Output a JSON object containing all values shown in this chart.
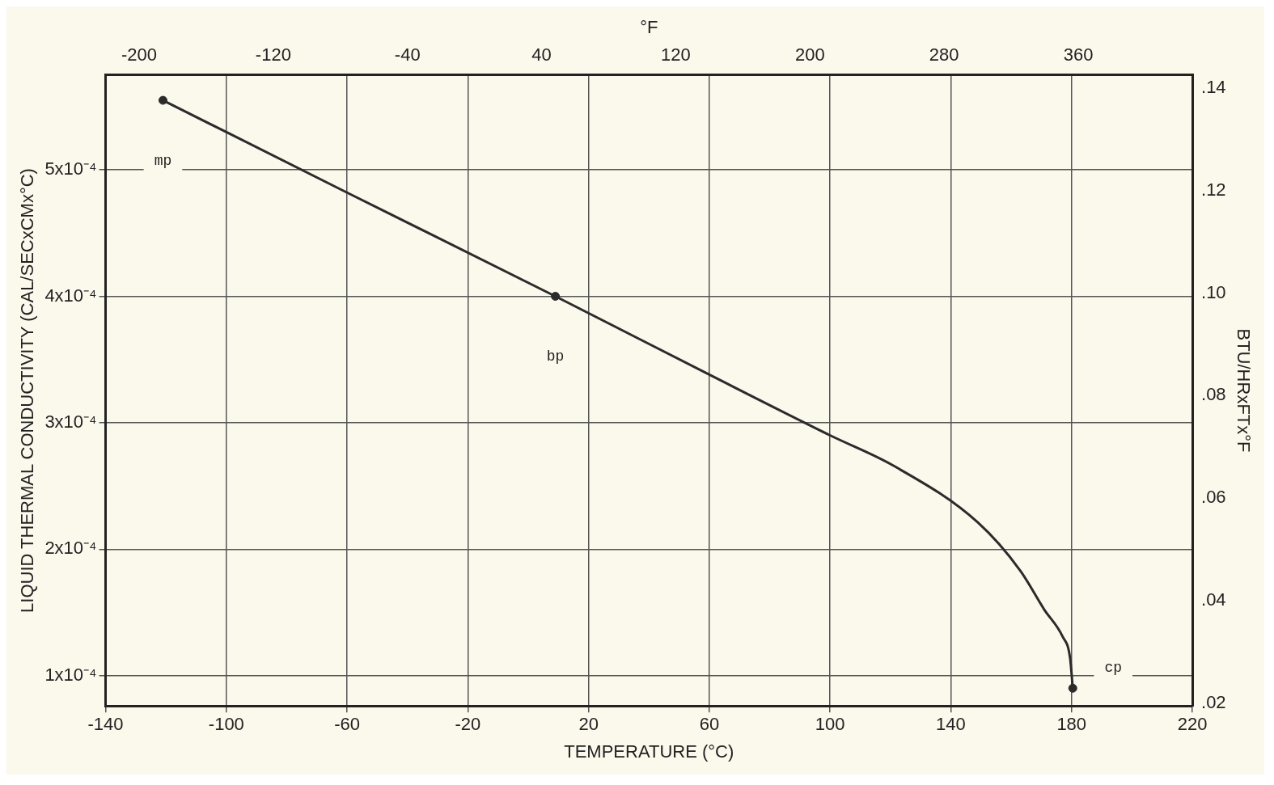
{
  "chart_data": {
    "type": "line",
    "xlabel": "TEMPERATURE (°C)",
    "ylabel": "LIQUID THERMAL CONDUCTIVITY (CAL/SECxCMx°C)",
    "x2label": "°F",
    "y2label": "BTU/HRxFTx°F",
    "xlim": [
      -140,
      220
    ],
    "xticks": [
      -140,
      -100,
      -60,
      -20,
      20,
      60,
      100,
      140,
      180,
      220
    ],
    "x2lim": [
      -220,
      428
    ],
    "x2ticks": [
      -200,
      -120,
      -40,
      40,
      120,
      200,
      280,
      360
    ],
    "ylim": [
      7.6e-05,
      0.000575
    ],
    "yticks": [
      {
        "value": 0.0001,
        "label": "1x10⁻⁴"
      },
      {
        "value": 0.0002,
        "label": "2x10⁻⁴"
      },
      {
        "value": 0.0003,
        "label": "3x10⁻⁴"
      },
      {
        "value": 0.0004,
        "label": "4x10⁻⁴"
      },
      {
        "value": 0.0005,
        "label": "5x10⁻⁴"
      }
    ],
    "y2lim": [
      0.0195,
      0.1425
    ],
    "y2ticks": [
      {
        "value": 0.02,
        "label": ".02"
      },
      {
        "value": 0.04,
        "label": ".04"
      },
      {
        "value": 0.06,
        "label": ".06"
      },
      {
        "value": 0.08,
        "label": ".08"
      },
      {
        "value": 0.1,
        "label": ".10"
      },
      {
        "value": 0.12,
        "label": ".12"
      },
      {
        "value": 0.14,
        "label": ".14"
      }
    ],
    "grid": true,
    "marker": "none",
    "series": [
      {
        "color": "#2b2b2b",
        "x": [
          -121,
          -60,
          9,
          60,
          100,
          121,
          149,
          163,
          171,
          177,
          179.5,
          180.4
        ],
        "values": [
          0.000555,
          0.000482,
          0.0004,
          0.000338,
          0.00029,
          0.000266,
          0.000221,
          0.000183,
          0.000152,
          0.000131,
          0.000114,
          9e-05
        ]
      },
      {
        "type": "scatter",
        "color": "#2b2b2b",
        "marker": "circle",
        "x": [
          -121,
          9,
          180.4
        ],
        "values": [
          0.000555,
          0.0004,
          9e-05
        ]
      }
    ],
    "annotations": [
      "mp",
      "bp",
      "cp"
    ]
  }
}
